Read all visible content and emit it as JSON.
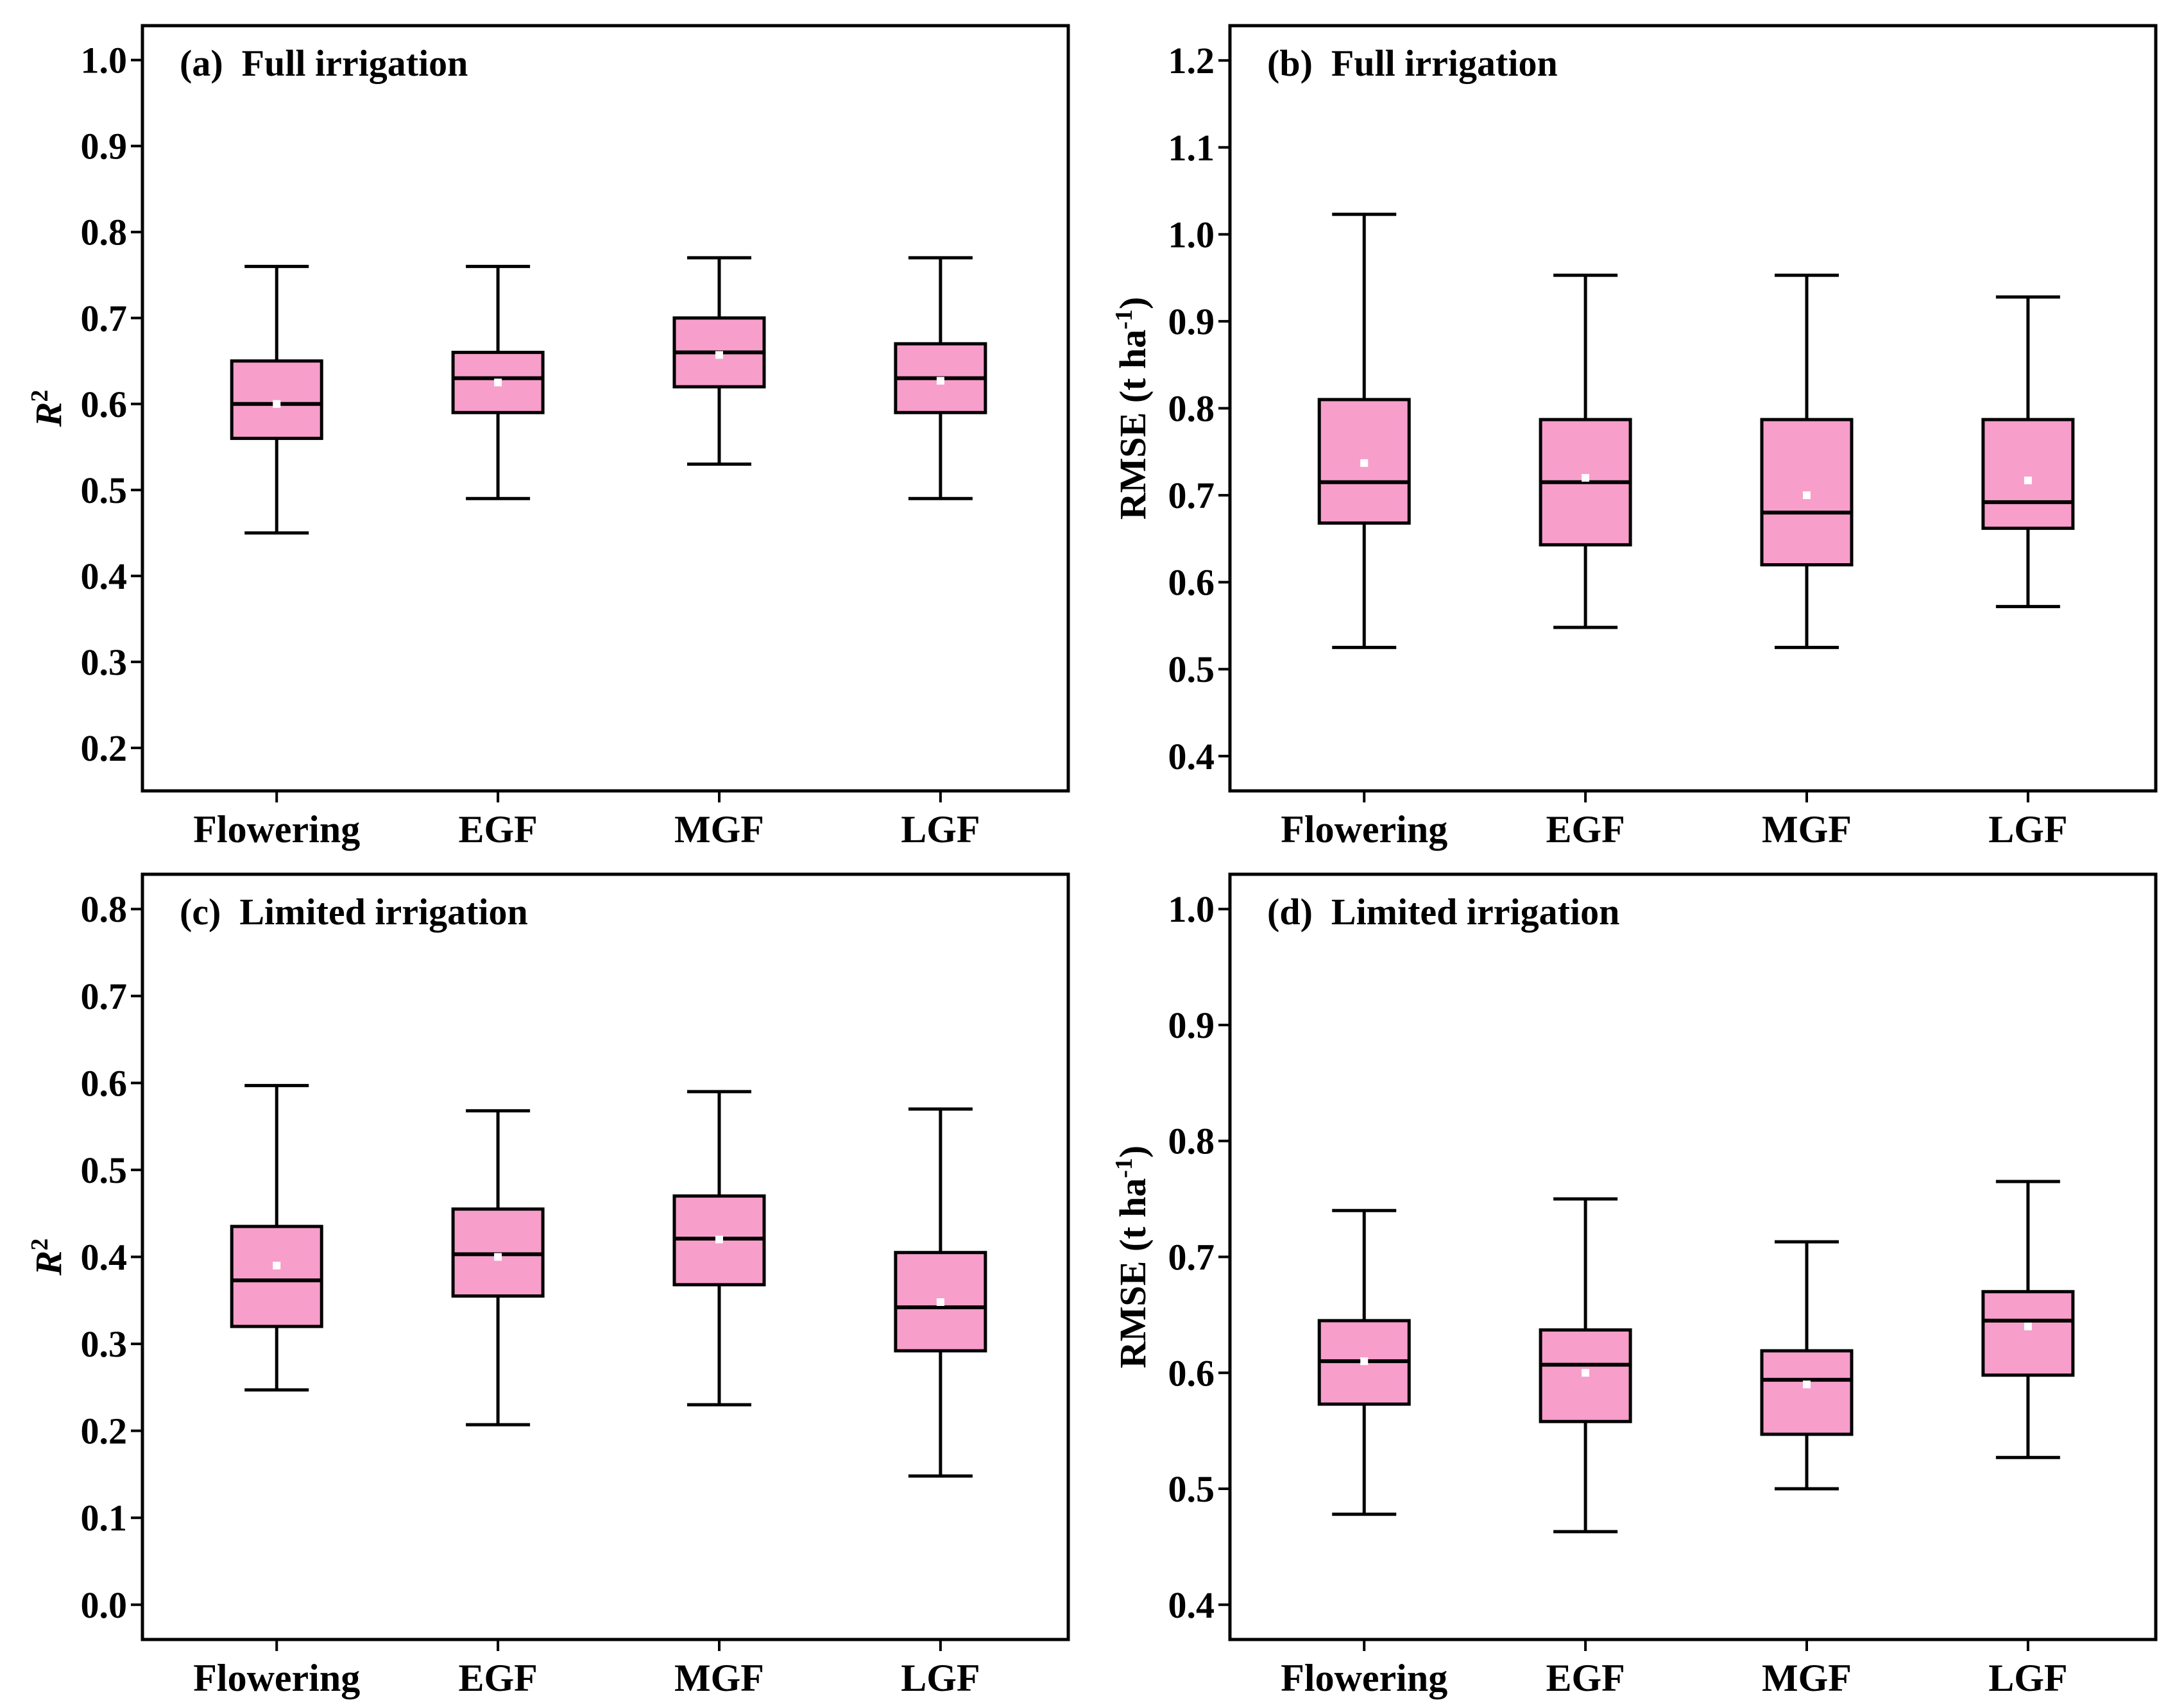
{
  "colors": {
    "box_fill": "#F79ECB",
    "mean_marker": "#FFFFFF",
    "line": "#000000"
  },
  "chart_data": [
    {
      "id": "a",
      "type": "boxplot",
      "title": "(a)  Full irrigation",
      "ylabel": "R",
      "ylabel_sup": "2",
      "ylim": [
        0.15,
        1.04
      ],
      "yticks": [
        0.2,
        0.3,
        0.4,
        0.5,
        0.6,
        0.7,
        0.8,
        0.9,
        1.0
      ],
      "ytick_labels": [
        "0.2",
        "0.3",
        "0.4",
        "0.5",
        "0.6",
        "0.7",
        "0.8",
        "0.9",
        "1.0"
      ],
      "categories": [
        "Flowering",
        "EGF",
        "MGF",
        "LGF"
      ],
      "boxes": [
        {
          "min": 0.45,
          "q1": 0.56,
          "median": 0.6,
          "q3": 0.65,
          "max": 0.76,
          "mean": 0.6
        },
        {
          "min": 0.49,
          "q1": 0.59,
          "median": 0.63,
          "q3": 0.66,
          "max": 0.76,
          "mean": 0.625
        },
        {
          "min": 0.53,
          "q1": 0.62,
          "median": 0.66,
          "q3": 0.7,
          "max": 0.77,
          "mean": 0.657
        },
        {
          "min": 0.49,
          "q1": 0.59,
          "median": 0.63,
          "q3": 0.67,
          "max": 0.77,
          "mean": 0.627
        }
      ]
    },
    {
      "id": "b",
      "type": "boxplot",
      "title": "(b)  Full irrigation",
      "ylabel": "RMSE (t ha",
      "ylabel_sup": "-1",
      "ylabel_suffix": ")",
      "ylim": [
        0.36,
        1.24
      ],
      "yticks": [
        0.4,
        0.5,
        0.6,
        0.7,
        0.8,
        0.9,
        1.0,
        1.1,
        1.2
      ],
      "ytick_labels": [
        "0.4",
        "0.5",
        "0.6",
        "0.7",
        "0.8",
        "0.9",
        "1.0",
        "1.1",
        "1.2"
      ],
      "categories": [
        "Flowering",
        "EGF",
        "MGF",
        "LGF"
      ],
      "boxes": [
        {
          "min": 0.525,
          "q1": 0.668,
          "median": 0.715,
          "q3": 0.81,
          "max": 1.023,
          "mean": 0.737
        },
        {
          "min": 0.548,
          "q1": 0.643,
          "median": 0.715,
          "q3": 0.787,
          "max": 0.953,
          "mean": 0.72
        },
        {
          "min": 0.525,
          "q1": 0.62,
          "median": 0.68,
          "q3": 0.787,
          "max": 0.953,
          "mean": 0.7
        },
        {
          "min": 0.572,
          "q1": 0.662,
          "median": 0.692,
          "q3": 0.787,
          "max": 0.928,
          "mean": 0.717
        }
      ]
    },
    {
      "id": "c",
      "type": "boxplot",
      "title": "(c)  Limited irrigation",
      "ylabel": "R",
      "ylabel_sup": "2",
      "ylim": [
        -0.04,
        0.84
      ],
      "yticks": [
        0.0,
        0.1,
        0.2,
        0.3,
        0.4,
        0.5,
        0.6,
        0.7,
        0.8
      ],
      "ytick_labels": [
        "0.0",
        "0.1",
        "0.2",
        "0.3",
        "0.4",
        "0.5",
        "0.6",
        "0.7",
        "0.8"
      ],
      "categories": [
        "Flowering",
        "EGF",
        "MGF",
        "LGF"
      ],
      "boxes": [
        {
          "min": 0.247,
          "q1": 0.32,
          "median": 0.373,
          "q3": 0.435,
          "max": 0.597,
          "mean": 0.39
        },
        {
          "min": 0.207,
          "q1": 0.355,
          "median": 0.403,
          "q3": 0.455,
          "max": 0.568,
          "mean": 0.4
        },
        {
          "min": 0.23,
          "q1": 0.368,
          "median": 0.421,
          "q3": 0.47,
          "max": 0.59,
          "mean": 0.42
        },
        {
          "min": 0.148,
          "q1": 0.292,
          "median": 0.342,
          "q3": 0.405,
          "max": 0.57,
          "mean": 0.348
        }
      ]
    },
    {
      "id": "d",
      "type": "boxplot",
      "title": "(d)  Limited irrigation",
      "ylabel": "RMSE (t ha",
      "ylabel_sup": "-1",
      "ylabel_suffix": ")",
      "ylim": [
        0.37,
        1.03
      ],
      "yticks": [
        0.4,
        0.5,
        0.6,
        0.7,
        0.8,
        0.9,
        1.0
      ],
      "ytick_labels": [
        "0.4",
        "0.5",
        "0.6",
        "0.7",
        "0.8",
        "0.9",
        "1.0"
      ],
      "categories": [
        "Flowering",
        "EGF",
        "MGF",
        "LGF"
      ],
      "boxes": [
        {
          "min": 0.478,
          "q1": 0.573,
          "median": 0.61,
          "q3": 0.645,
          "max": 0.74,
          "mean": 0.61
        },
        {
          "min": 0.463,
          "q1": 0.558,
          "median": 0.607,
          "q3": 0.637,
          "max": 0.75,
          "mean": 0.6
        },
        {
          "min": 0.5,
          "q1": 0.547,
          "median": 0.594,
          "q3": 0.619,
          "max": 0.713,
          "mean": 0.59
        },
        {
          "min": 0.527,
          "q1": 0.598,
          "median": 0.645,
          "q3": 0.67,
          "max": 0.765,
          "mean": 0.64
        }
      ]
    }
  ]
}
